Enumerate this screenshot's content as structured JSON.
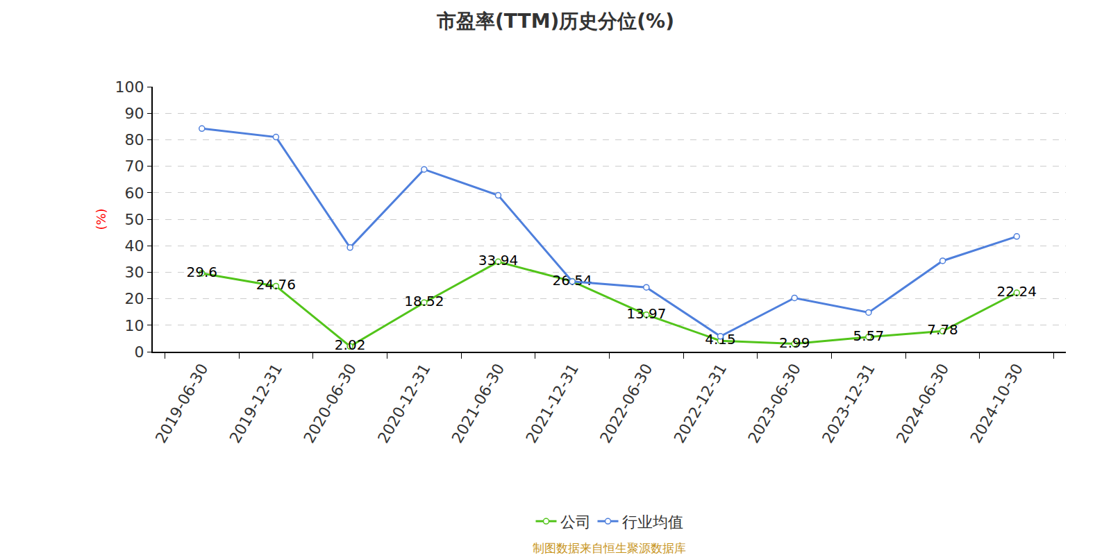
{
  "chart_data": {
    "type": "line",
    "title": "市盈率(TTM)历史分位(%)",
    "y_label": "(%)",
    "categories": [
      "2019-06-30",
      "2019-12-31",
      "2020-06-30",
      "2020-12-31",
      "2021-06-30",
      "2021-12-31",
      "2022-06-30",
      "2022-12-31",
      "2023-06-30",
      "2023-12-31",
      "2024-06-30",
      "2024-10-30"
    ],
    "series": [
      {
        "name": "公司",
        "color": "#52c41a",
        "marker": "circle",
        "data_labels": true,
        "values": [
          29.6,
          24.76,
          2.02,
          18.52,
          33.94,
          26.54,
          13.97,
          4.15,
          2.99,
          5.57,
          7.78,
          22.24
        ]
      },
      {
        "name": "行业均值",
        "color": "#4e7fdc",
        "marker": "circle",
        "data_labels": false,
        "values": [
          84.2,
          81.0,
          39.3,
          68.8,
          59.0,
          26.5,
          24.3,
          5.8,
          20.3,
          14.8,
          34.3,
          43.5
        ]
      }
    ],
    "ylim": [
      0,
      100
    ],
    "yticks": [
      0,
      10,
      20,
      30,
      40,
      50,
      60,
      70,
      80,
      90,
      100
    ],
    "grid": true,
    "legend": "bottom",
    "annotations": [
      "制图数据来自恒生聚源数据库"
    ]
  }
}
